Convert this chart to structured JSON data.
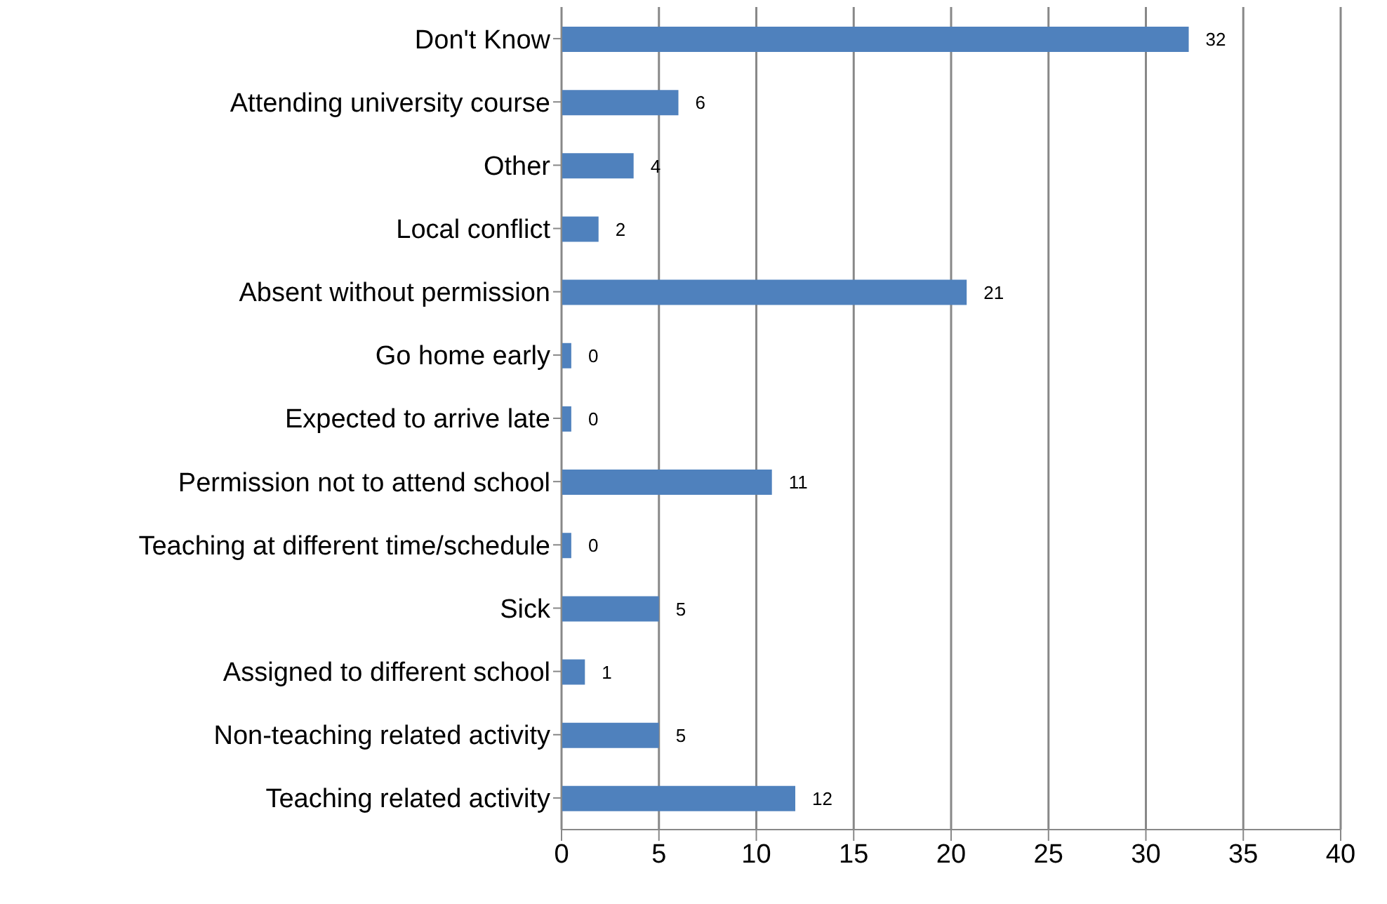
{
  "chart_data": {
    "type": "bar",
    "orientation": "horizontal",
    "categories": [
      "Don't Know",
      "Attending university course",
      "Other",
      "Local conflict",
      "Absent without permission",
      "Go home early",
      "Expected to arrive late",
      "Permission not to attend school",
      "Teaching at different time/schedule",
      "Sick",
      "Assigned to different school",
      "Non-teaching related activity",
      "Teaching related activity"
    ],
    "values": [
      32.2,
      6,
      3.7,
      1.9,
      20.8,
      0.5,
      0.5,
      10.8,
      0.5,
      5,
      1.2,
      5,
      12
    ],
    "value_labels": [
      "32",
      "6",
      "4",
      "2",
      "21",
      "0",
      "0",
      "11",
      "0",
      "5",
      "1",
      "5",
      "12"
    ],
    "color": "#4f81bd",
    "xlim": [
      0,
      40
    ],
    "xticks": [
      0,
      5,
      10,
      15,
      20,
      25,
      30,
      35,
      40
    ],
    "grid": "x",
    "legend": false
  }
}
